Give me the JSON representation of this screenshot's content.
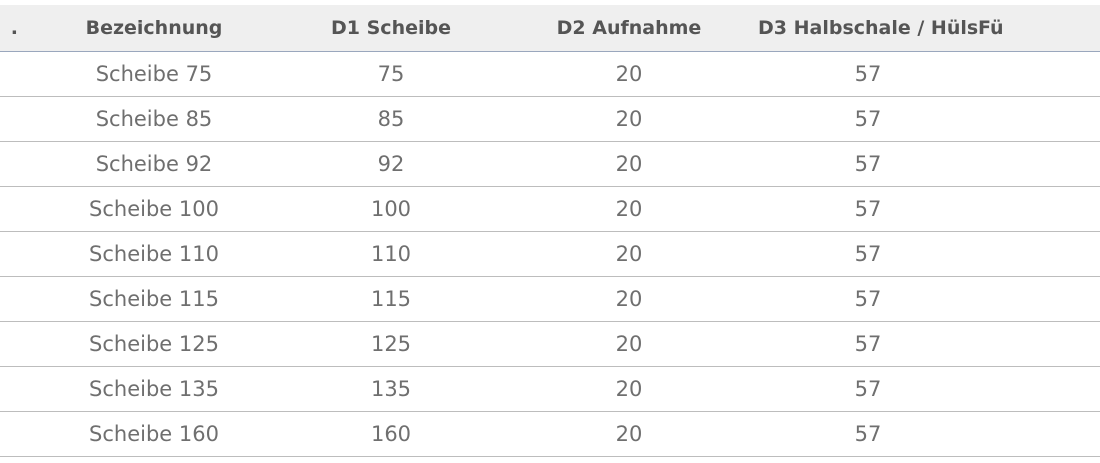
{
  "table": {
    "headers": [
      ".",
      "Bezeichnung",
      "D1 Scheibe",
      "D2 Aufnahme",
      "D3 Halbschale / Hülse",
      "Fü"
    ],
    "rows": [
      [
        "",
        "Scheibe 75",
        "75",
        "20",
        "57",
        ""
      ],
      [
        "",
        "Scheibe 85",
        "85",
        "20",
        "57",
        ""
      ],
      [
        "",
        "Scheibe 92",
        "92",
        "20",
        "57",
        ""
      ],
      [
        "",
        "Scheibe 100",
        "100",
        "20",
        "57",
        ""
      ],
      [
        "",
        "Scheibe 110",
        "110",
        "20",
        "57",
        ""
      ],
      [
        "",
        "Scheibe 115",
        "115",
        "20",
        "57",
        ""
      ],
      [
        "",
        "Scheibe 125",
        "125",
        "20",
        "57",
        ""
      ],
      [
        "",
        "Scheibe 135",
        "135",
        "20",
        "57",
        ""
      ],
      [
        "",
        "Scheibe 160",
        "160",
        "20",
        "57",
        ""
      ]
    ]
  },
  "colors": {
    "header_background": "#efefef",
    "header_text": "#555555",
    "cell_text": "#6f6f6f",
    "row_divider": "#bdbdbd"
  }
}
